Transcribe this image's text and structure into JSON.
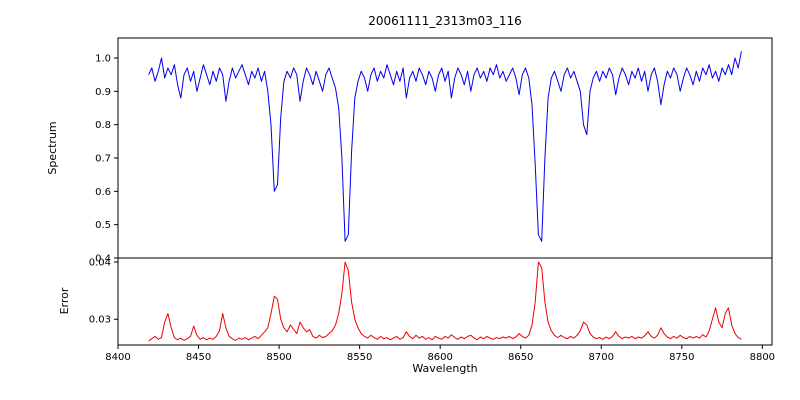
{
  "chart_data": {
    "type": "line",
    "title": "20061111_2313m03_116",
    "xlabel": "Wavelength",
    "legend": "none",
    "grid": false,
    "xlim": [
      8400,
      8806
    ],
    "xticks": [
      8400,
      8450,
      8500,
      8550,
      8600,
      8650,
      8700,
      8750,
      8800
    ],
    "xtick_labels": [
      "8400",
      "8450",
      "8500",
      "8550",
      "8600",
      "8650",
      "8700",
      "8750",
      "8800"
    ],
    "x_start": 8419,
    "x_step": 2,
    "panels": [
      {
        "name": "spectrum",
        "ylabel": "Spectrum",
        "color": "#0000ee",
        "ylim": [
          0.4,
          1.06
        ],
        "yticks": [
          0.4,
          0.5,
          0.6,
          0.7,
          0.8,
          0.9,
          1.0
        ],
        "ytick_labels": [
          "0.4",
          "0.5",
          "0.6",
          "0.7",
          "0.8",
          "0.9",
          "1.0"
        ],
        "absorption_line_centers": [
          8498,
          8542,
          8662,
          8690
        ],
        "values": [
          0.95,
          0.97,
          0.93,
          0.96,
          1.0,
          0.94,
          0.97,
          0.95,
          0.98,
          0.92,
          0.88,
          0.95,
          0.97,
          0.93,
          0.96,
          0.9,
          0.94,
          0.98,
          0.95,
          0.92,
          0.96,
          0.93,
          0.97,
          0.95,
          0.87,
          0.93,
          0.97,
          0.94,
          0.96,
          0.98,
          0.95,
          0.92,
          0.96,
          0.94,
          0.97,
          0.93,
          0.96,
          0.9,
          0.8,
          0.6,
          0.62,
          0.82,
          0.93,
          0.96,
          0.94,
          0.97,
          0.95,
          0.87,
          0.93,
          0.97,
          0.95,
          0.92,
          0.96,
          0.93,
          0.9,
          0.95,
          0.97,
          0.94,
          0.91,
          0.85,
          0.7,
          0.45,
          0.47,
          0.72,
          0.88,
          0.93,
          0.96,
          0.94,
          0.9,
          0.95,
          0.97,
          0.93,
          0.96,
          0.94,
          0.98,
          0.95,
          0.92,
          0.96,
          0.93,
          0.97,
          0.88,
          0.94,
          0.96,
          0.93,
          0.97,
          0.95,
          0.92,
          0.96,
          0.94,
          0.9,
          0.95,
          0.97,
          0.93,
          0.96,
          0.88,
          0.94,
          0.97,
          0.95,
          0.92,
          0.96,
          0.9,
          0.95,
          0.97,
          0.94,
          0.96,
          0.93,
          0.97,
          0.95,
          0.98,
          0.94,
          0.96,
          0.93,
          0.95,
          0.97,
          0.94,
          0.89,
          0.95,
          0.97,
          0.94,
          0.86,
          0.68,
          0.47,
          0.45,
          0.7,
          0.88,
          0.94,
          0.96,
          0.93,
          0.9,
          0.95,
          0.97,
          0.94,
          0.96,
          0.93,
          0.9,
          0.8,
          0.77,
          0.9,
          0.94,
          0.96,
          0.93,
          0.96,
          0.94,
          0.97,
          0.95,
          0.89,
          0.94,
          0.97,
          0.95,
          0.92,
          0.96,
          0.94,
          0.97,
          0.93,
          0.96,
          0.9,
          0.95,
          0.97,
          0.93,
          0.86,
          0.92,
          0.96,
          0.94,
          0.97,
          0.95,
          0.9,
          0.94,
          0.97,
          0.95,
          0.92,
          0.96,
          0.93,
          0.97,
          0.95,
          0.98,
          0.94,
          0.96,
          0.93,
          0.97,
          0.95,
          0.98,
          0.95,
          1.0,
          0.97,
          1.02
        ]
      },
      {
        "name": "error",
        "ylabel": "Error",
        "color": "#ee0000",
        "ylim": [
          0.0255,
          0.0407
        ],
        "yticks": [
          0.03,
          0.04
        ],
        "ytick_labels": [
          "0.03",
          "0.04"
        ],
        "values": [
          0.0262,
          0.0266,
          0.027,
          0.0265,
          0.0268,
          0.0295,
          0.031,
          0.0285,
          0.0268,
          0.0264,
          0.0267,
          0.0263,
          0.0266,
          0.027,
          0.0288,
          0.0272,
          0.0265,
          0.0268,
          0.0264,
          0.0267,
          0.0265,
          0.027,
          0.028,
          0.031,
          0.0285,
          0.027,
          0.0266,
          0.0263,
          0.0267,
          0.0265,
          0.0268,
          0.0264,
          0.0267,
          0.027,
          0.0266,
          0.0272,
          0.0278,
          0.0285,
          0.031,
          0.034,
          0.0335,
          0.03,
          0.0285,
          0.0278,
          0.029,
          0.0282,
          0.0275,
          0.0295,
          0.0285,
          0.0278,
          0.0282,
          0.027,
          0.0267,
          0.0272,
          0.0268,
          0.027,
          0.0275,
          0.028,
          0.029,
          0.031,
          0.0345,
          0.04,
          0.0385,
          0.033,
          0.03,
          0.0285,
          0.0275,
          0.027,
          0.0267,
          0.0272,
          0.0268,
          0.0265,
          0.027,
          0.0266,
          0.0268,
          0.0264,
          0.0267,
          0.027,
          0.0265,
          0.0268,
          0.0278,
          0.027,
          0.0266,
          0.0272,
          0.0267,
          0.027,
          0.0265,
          0.0268,
          0.0264,
          0.027,
          0.0267,
          0.0265,
          0.027,
          0.0267,
          0.0273,
          0.0268,
          0.0265,
          0.0269,
          0.0266,
          0.027,
          0.0272,
          0.0267,
          0.0264,
          0.0269,
          0.0266,
          0.027,
          0.0267,
          0.0265,
          0.0268,
          0.0266,
          0.0269,
          0.0267,
          0.027,
          0.0266,
          0.0269,
          0.0275,
          0.027,
          0.0267,
          0.0272,
          0.029,
          0.033,
          0.04,
          0.039,
          0.033,
          0.0295,
          0.028,
          0.0272,
          0.0268,
          0.0272,
          0.0268,
          0.0266,
          0.027,
          0.0267,
          0.0272,
          0.028,
          0.0295,
          0.029,
          0.0275,
          0.0269,
          0.0266,
          0.0268,
          0.0265,
          0.0269,
          0.0266,
          0.027,
          0.0278,
          0.027,
          0.0266,
          0.0269,
          0.0267,
          0.027,
          0.0266,
          0.0269,
          0.0267,
          0.0271,
          0.0278,
          0.027,
          0.0267,
          0.0272,
          0.0285,
          0.0275,
          0.0269,
          0.0266,
          0.027,
          0.0267,
          0.0272,
          0.0268,
          0.0266,
          0.027,
          0.0267,
          0.027,
          0.0267,
          0.0273,
          0.0269,
          0.028,
          0.03,
          0.032,
          0.0295,
          0.0285,
          0.031,
          0.032,
          0.029,
          0.0275,
          0.0268,
          0.0265
        ]
      }
    ]
  }
}
